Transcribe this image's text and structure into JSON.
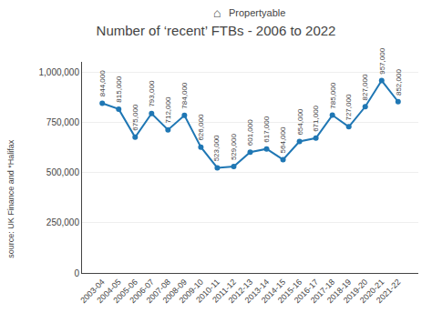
{
  "chart_data": {
    "type": "line",
    "title": "Number of ‘recent’ FTBs - 2006 to 2022",
    "annotations": [
      "⌂",
      "Propertyable",
      "source: UK Finance and *Halifax"
    ],
    "categories": [
      "2003-04",
      "2004-05",
      "2005-06",
      "2006-07",
      "2007-08",
      "2008-09",
      "2009-10",
      "2010-11",
      "2011-12",
      "2012-13",
      "2013-14",
      "2014-15",
      "2015-16",
      "2016-17",
      "2017-18",
      "2018-19",
      "2019-20",
      "2020-21",
      "2021-22"
    ],
    "values": [
      844000,
      815000,
      675000,
      793000,
      712000,
      784000,
      626000,
      523000,
      529000,
      601000,
      617000,
      564000,
      654000,
      671000,
      785000,
      727000,
      827000,
      957000,
      852000
    ],
    "value_labels": [
      "844,000",
      "815,000",
      "675,000",
      "793,000",
      "712,000",
      "784,000",
      "626,000",
      "523,000",
      "529,000",
      "601,000",
      "617,000",
      "564,000",
      "654,000",
      "671,000",
      "785,000",
      "727,000",
      "827,000",
      "957,000",
      "852,000"
    ],
    "data_labels": true,
    "ylim": [
      0,
      1050000
    ],
    "yticks": [
      0,
      {
        "value": 250000,
        "label": "250,000"
      },
      {
        "value": 500000,
        "label": "500,000"
      },
      {
        "value": 750000,
        "label": "750,000"
      },
      {
        "value": 1000000,
        "label": "1,000,000"
      }
    ],
    "grid": true
  }
}
